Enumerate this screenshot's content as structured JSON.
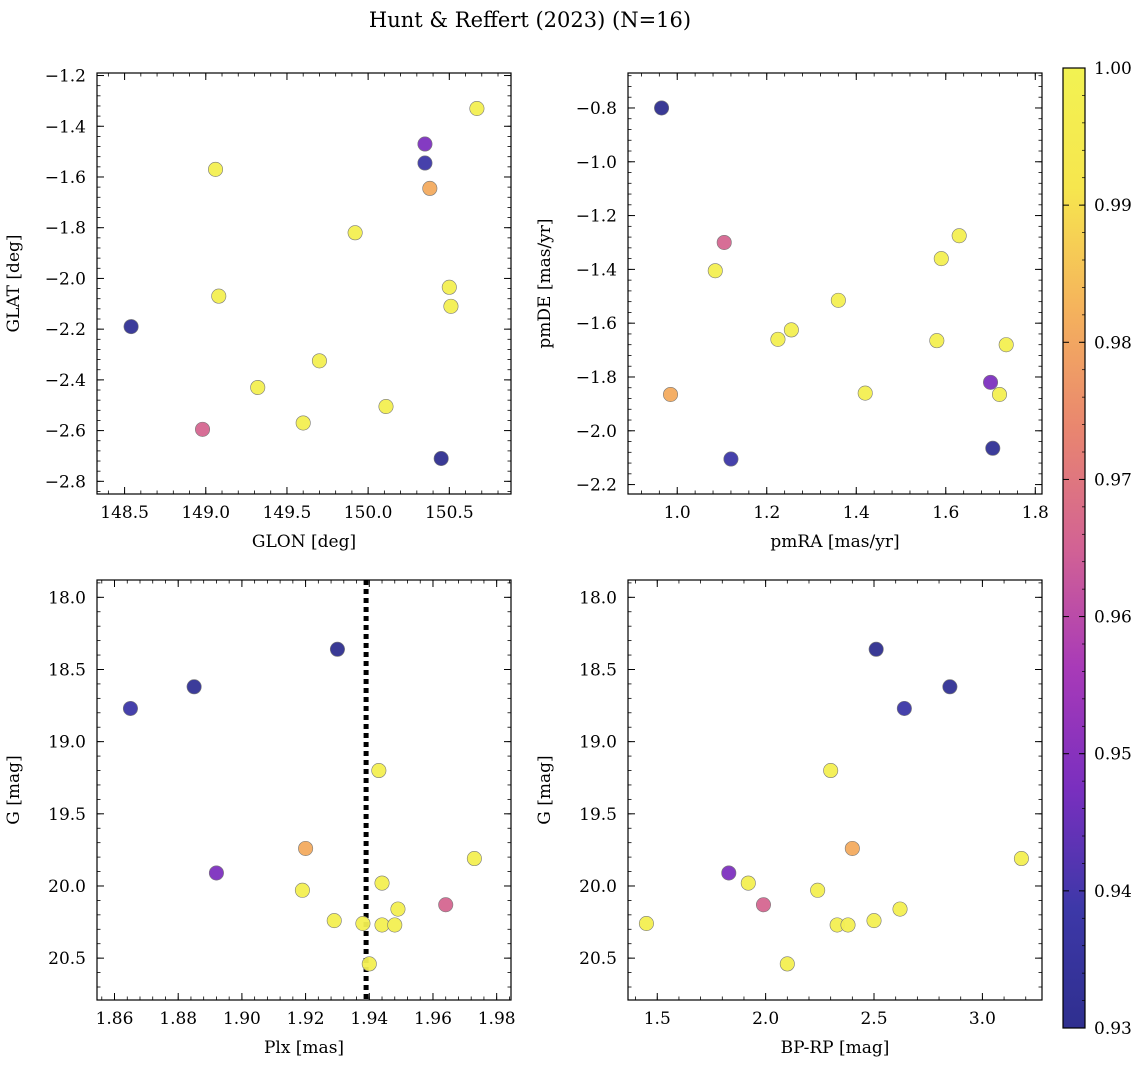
{
  "chart_data": {
    "type": "scatter",
    "title": "Hunt & Reffert (2023) (N=16)",
    "colormap": "plasma",
    "colorbar": {
      "range": [
        0.93,
        1.0
      ],
      "ticks": [
        0.93,
        0.94,
        0.95,
        0.96,
        0.97,
        0.98,
        0.99,
        1.0
      ],
      "tick_labels": [
        "0.93",
        "0.94",
        "0.95",
        "0.96",
        "0.97",
        "0.98",
        "0.99",
        "1.00"
      ],
      "stops": [
        "#2f2f8f",
        "#3d38a8",
        "#7a2fbf",
        "#a83ab8",
        "#d26294",
        "#e9866f",
        "#f5b35c",
        "#f6e64e",
        "#f2f252"
      ]
    },
    "stars": [
      {
        "glon": 148.54,
        "glat": -2.19,
        "pmra": 1.705,
        "pmde": -2.065,
        "plx": 1.885,
        "g": 18.62,
        "bprp": 2.85,
        "prob": 0.932
      },
      {
        "glon": 150.45,
        "glat": -2.71,
        "pmra": 0.965,
        "pmde": -0.8,
        "plx": 1.93,
        "g": 18.36,
        "bprp": 2.51,
        "prob": 0.93
      },
      {
        "glon": 150.35,
        "glat": -1.545,
        "pmra": 1.12,
        "pmde": -2.105,
        "plx": 1.865,
        "g": 18.77,
        "bprp": 2.64,
        "prob": 0.938
      },
      {
        "glon": 150.35,
        "glat": -1.47,
        "pmra": 1.7,
        "pmde": -1.82,
        "plx": 1.892,
        "g": 19.91,
        "bprp": 1.83,
        "prob": 0.948
      },
      {
        "glon": 148.98,
        "glat": -2.595,
        "pmra": 1.105,
        "pmde": -1.3,
        "plx": 1.964,
        "g": 20.13,
        "bprp": 1.99,
        "prob": 0.966
      },
      {
        "glon": 150.38,
        "glat": -1.645,
        "pmra": 0.985,
        "pmde": -1.865,
        "plx": 1.92,
        "g": 19.74,
        "bprp": 2.4,
        "prob": 0.981
      },
      {
        "glon": 149.06,
        "glat": -1.57,
        "pmra": 1.36,
        "pmde": -1.515,
        "plx": 1.943,
        "g": 19.2,
        "bprp": 2.3,
        "prob": 0.998
      },
      {
        "glon": 149.08,
        "glat": -2.07,
        "pmra": 1.63,
        "pmde": -1.275,
        "plx": 1.973,
        "g": 19.81,
        "bprp": 3.18,
        "prob": 0.998
      },
      {
        "glon": 149.92,
        "glat": -1.82,
        "pmra": 1.59,
        "pmde": -1.36,
        "plx": 1.944,
        "g": 19.98,
        "bprp": 1.92,
        "prob": 0.998
      },
      {
        "glon": 150.67,
        "glat": -1.33,
        "pmra": 1.085,
        "pmde": -1.405,
        "plx": 1.919,
        "g": 20.03,
        "bprp": 2.24,
        "prob": 0.998
      },
      {
        "glon": 150.5,
        "glat": -2.035,
        "pmra": 1.225,
        "pmde": -1.66,
        "plx": 1.949,
        "g": 20.16,
        "bprp": 2.62,
        "prob": 0.998
      },
      {
        "glon": 150.51,
        "glat": -2.11,
        "pmra": 1.255,
        "pmde": -1.625,
        "plx": 1.929,
        "g": 20.24,
        "bprp": 2.5,
        "prob": 0.998
      },
      {
        "glon": 149.7,
        "glat": -2.325,
        "pmra": 1.58,
        "pmde": -1.665,
        "plx": 1.944,
        "g": 20.27,
        "bprp": 2.33,
        "prob": 0.998
      },
      {
        "glon": 149.32,
        "glat": -2.43,
        "pmra": 1.735,
        "pmde": -1.68,
        "plx": 1.948,
        "g": 20.27,
        "bprp": 2.38,
        "prob": 0.998
      },
      {
        "glon": 150.11,
        "glat": -2.505,
        "pmra": 1.42,
        "pmde": -1.86,
        "plx": 1.938,
        "g": 20.26,
        "bprp": 1.45,
        "prob": 0.998
      },
      {
        "glon": 149.6,
        "glat": -2.57,
        "pmra": 1.72,
        "pmde": -1.865,
        "plx": 1.94,
        "g": 20.54,
        "bprp": 2.1,
        "prob": 0.998
      }
    ],
    "panels": [
      {
        "name": "glon-glat",
        "xkey": "glon",
        "ykey": "glat",
        "xlabel": "GLON [deg]",
        "ylabel": "GLAT [deg]",
        "xlim": [
          148.33,
          150.88
        ],
        "ylim": [
          -2.85,
          -1.19
        ],
        "xticks": [
          148.5,
          149.0,
          149.5,
          150.0,
          150.5
        ],
        "xtick_labels": [
          "148.5",
          "149.0",
          "149.5",
          "150.0",
          "150.5"
        ],
        "yticks": [
          -2.8,
          -2.6,
          -2.4,
          -2.2,
          -2.0,
          -1.8,
          -1.6,
          -1.4,
          -1.2
        ],
        "ytick_labels": [
          "−2.8",
          "−2.6",
          "−2.4",
          "−2.2",
          "−2.0",
          "−1.8",
          "−1.6",
          "−1.4",
          "−1.2"
        ],
        "yinvert": false
      },
      {
        "name": "pmra-pmde",
        "xkey": "pmra",
        "ykey": "pmde",
        "xlabel": "pmRA [mas/yr]",
        "ylabel": "pmDE [mas/yr]",
        "xlim": [
          0.89,
          1.815
        ],
        "ylim": [
          -2.235,
          -0.67
        ],
        "xticks": [
          1.0,
          1.2,
          1.4,
          1.6,
          1.8
        ],
        "xtick_labels": [
          "1.0",
          "1.2",
          "1.4",
          "1.6",
          "1.8"
        ],
        "yticks": [
          -2.2,
          -2.0,
          -1.8,
          -1.6,
          -1.4,
          -1.2,
          -1.0,
          -0.8
        ],
        "ytick_labels": [
          "−2.2",
          "−2.0",
          "−1.8",
          "−1.6",
          "−1.4",
          "−1.2",
          "−1.0",
          "−0.8"
        ],
        "yinvert": false
      },
      {
        "name": "plx-g",
        "xkey": "plx",
        "ykey": "g",
        "xlabel": "Plx [mas]",
        "ylabel": "G [mag]",
        "xlim": [
          1.8545,
          1.9845
        ],
        "ylim": [
          17.88,
          20.79
        ],
        "xticks": [
          1.86,
          1.88,
          1.9,
          1.92,
          1.94,
          1.96,
          1.98
        ],
        "xtick_labels": [
          "1.86",
          "1.88",
          "1.90",
          "1.92",
          "1.94",
          "1.96",
          "1.98"
        ],
        "yticks": [
          18.0,
          18.5,
          19.0,
          19.5,
          20.0,
          20.5
        ],
        "ytick_labels": [
          "18.0",
          "18.5",
          "19.0",
          "19.5",
          "20.0",
          "20.5"
        ],
        "yinvert": true,
        "vline": 1.939
      },
      {
        "name": "bprp-g",
        "xkey": "bprp",
        "ykey": "g",
        "xlabel": "BP-RP [mag]",
        "ylabel": "G [mag]",
        "xlim": [
          1.365,
          3.275
        ],
        "ylim": [
          17.88,
          20.79
        ],
        "xticks": [
          1.5,
          2.0,
          2.5,
          3.0
        ],
        "xtick_labels": [
          "1.5",
          "2.0",
          "2.5",
          "3.0"
        ],
        "yticks": [
          18.0,
          18.5,
          19.0,
          19.5,
          20.0,
          20.5
        ],
        "ytick_labels": [
          "18.0",
          "18.5",
          "19.0",
          "19.5",
          "20.0",
          "20.5"
        ],
        "yinvert": true
      }
    ]
  }
}
